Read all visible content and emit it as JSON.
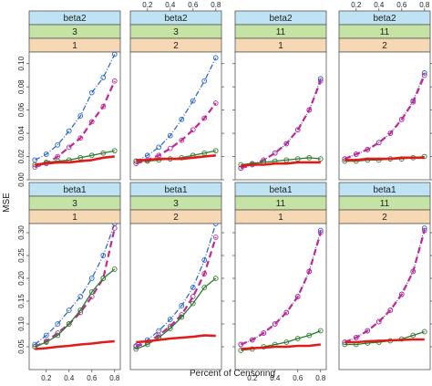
{
  "chart_data": {
    "type": "line",
    "xlabel": "Percent of Censoring",
    "ylabel": "MSE",
    "x": [
      0.1,
      0.2,
      0.3,
      0.4,
      0.5,
      0.6,
      0.7,
      0.8
    ],
    "x_ticks": [
      "0.2",
      "0.4",
      "0.6",
      "0.8"
    ],
    "x_tick_values": [
      0.2,
      0.4,
      0.6,
      0.8
    ],
    "xlim": [
      0.05,
      0.85
    ],
    "grid": false,
    "rows": [
      {
        "ylim": [
          0,
          0.11
        ],
        "y_ticks": [
          "0.00",
          "0.02",
          "0.04",
          "0.06",
          "0.08",
          "0.10"
        ],
        "y_tick_values": [
          0,
          0.02,
          0.04,
          0.06,
          0.08,
          0.1
        ]
      },
      {
        "ylim": [
          0,
          0.32
        ],
        "y_ticks": [
          "0.05",
          "0.10",
          "0.15",
          "0.20",
          "0.25",
          "0.30"
        ],
        "y_tick_values": [
          0.05,
          0.1,
          0.15,
          0.2,
          0.25,
          0.3
        ]
      }
    ],
    "colors": {
      "strip1": "#bfe3f2",
      "strip2": "#c6e3a6",
      "strip3": "#f7d8b4",
      "frame": "#555555"
    },
    "series_styles": [
      {
        "color": "#1f5fd1",
        "dash": "6,2,1,2",
        "width": 1.2,
        "marker": "circle-open"
      },
      {
        "color": "#c0289a",
        "dash": "7,4",
        "width": 2.2,
        "marker": "circle-open"
      },
      {
        "color": "#2b7a2b",
        "dash": "",
        "width": 1.3,
        "marker": "circle-open"
      },
      {
        "color": "#e11a1a",
        "dash": "",
        "width": 2.6,
        "marker": "none"
      }
    ],
    "panels": [
      {
        "strips": [
          "beta2",
          "3",
          "1"
        ],
        "row": 0,
        "col": 0,
        "series": [
          {
            "values": [
              0.017,
              0.022,
              0.03,
              0.042,
              0.055,
              0.075,
              0.088,
              0.108
            ]
          },
          {
            "values": [
              0.011,
              0.014,
              0.02,
              0.028,
              0.036,
              0.05,
              0.063,
              0.085
            ]
          },
          {
            "values": [
              0.013,
              0.015,
              0.016,
              0.017,
              0.019,
              0.021,
              0.023,
              0.025
            ]
          },
          {
            "values": [
              0.013,
              0.014,
              0.015,
              0.015,
              0.016,
              0.017,
              0.019,
              0.02
            ]
          }
        ]
      },
      {
        "strips": [
          "beta2",
          "3",
          "2"
        ],
        "row": 0,
        "col": 1,
        "series": [
          {
            "values": [
              0.016,
              0.021,
              0.028,
              0.038,
              0.052,
              0.068,
              0.085,
              0.105
            ]
          },
          {
            "values": [
              0.014,
              0.017,
              0.021,
              0.027,
              0.034,
              0.043,
              0.053,
              0.066
            ]
          },
          {
            "values": [
              0.016,
              0.016,
              0.017,
              0.018,
              0.019,
              0.021,
              0.023,
              0.025
            ]
          },
          {
            "values": [
              0.017,
              0.017,
              0.018,
              0.018,
              0.018,
              0.019,
              0.02,
              0.021
            ]
          }
        ]
      },
      {
        "strips": [
          "beta2",
          "11",
          "1"
        ],
        "row": 0,
        "col": 2,
        "series": [
          {
            "values": [
              0.01,
              0.013,
              0.017,
              0.023,
              0.031,
              0.043,
              0.06,
              0.087
            ]
          },
          {
            "values": [
              0.01,
              0.013,
              0.017,
              0.023,
              0.031,
              0.043,
              0.06,
              0.085
            ]
          },
          {
            "values": [
              0.013,
              0.014,
              0.015,
              0.016,
              0.017,
              0.018,
              0.019,
              0.018
            ]
          },
          {
            "values": [
              0.012,
              0.013,
              0.013,
              0.014,
              0.014,
              0.015,
              0.015,
              0.015
            ]
          }
        ]
      },
      {
        "strips": [
          "beta2",
          "11",
          "2"
        ],
        "row": 0,
        "col": 3,
        "series": [
          {
            "values": [
              0.018,
              0.022,
              0.026,
              0.032,
              0.04,
              0.052,
              0.068,
              0.092
            ]
          },
          {
            "values": [
              0.018,
              0.022,
              0.026,
              0.032,
              0.04,
              0.052,
              0.067,
              0.09
            ]
          },
          {
            "values": [
              0.016,
              0.016,
              0.017,
              0.017,
              0.018,
              0.018,
              0.019,
              0.02
            ]
          },
          {
            "values": [
              0.017,
              0.017,
              0.018,
              0.018,
              0.018,
              0.019,
              0.019,
              0.019
            ]
          }
        ]
      },
      {
        "strips": [
          "beta1",
          "3",
          "1"
        ],
        "row": 1,
        "col": 0,
        "series": [
          {
            "values": [
              0.055,
              0.075,
              0.1,
              0.13,
              0.16,
              0.2,
              0.25,
              0.32
            ]
          },
          {
            "values": [
              0.05,
              0.062,
              0.08,
              0.1,
              0.125,
              0.16,
              0.2,
              0.31
            ]
          },
          {
            "values": [
              0.05,
              0.06,
              0.075,
              0.1,
              0.13,
              0.17,
              0.2,
              0.22
            ]
          },
          {
            "values": [
              0.045,
              0.047,
              0.05,
              0.052,
              0.055,
              0.057,
              0.06,
              0.062
            ]
          }
        ]
      },
      {
        "strips": [
          "beta1",
          "3",
          "2"
        ],
        "row": 1,
        "col": 1,
        "series": [
          {
            "values": [
              0.052,
              0.065,
              0.085,
              0.11,
              0.14,
              0.18,
              0.24,
              0.32
            ]
          },
          {
            "values": [
              0.05,
              0.06,
              0.075,
              0.095,
              0.12,
              0.16,
              0.21,
              0.29
            ]
          },
          {
            "values": [
              0.045,
              0.055,
              0.07,
              0.09,
              0.115,
              0.145,
              0.18,
              0.2
            ]
          },
          {
            "values": [
              0.06,
              0.062,
              0.065,
              0.068,
              0.07,
              0.072,
              0.075,
              0.074
            ]
          }
        ]
      },
      {
        "strips": [
          "beta1",
          "11",
          "1"
        ],
        "row": 1,
        "col": 2,
        "series": [
          {
            "values": [
              0.055,
              0.065,
              0.08,
              0.1,
              0.125,
              0.16,
              0.215,
              0.305
            ]
          },
          {
            "values": [
              0.055,
              0.065,
              0.08,
              0.1,
              0.125,
              0.16,
              0.215,
              0.3
            ]
          },
          {
            "values": [
              0.042,
              0.045,
              0.05,
              0.055,
              0.06,
              0.068,
              0.075,
              0.085
            ]
          },
          {
            "values": [
              0.045,
              0.047,
              0.048,
              0.05,
              0.05,
              0.052,
              0.052,
              0.055
            ]
          }
        ]
      },
      {
        "strips": [
          "beta1",
          "11",
          "2"
        ],
        "row": 1,
        "col": 3,
        "series": [
          {
            "values": [
              0.06,
              0.07,
              0.085,
              0.105,
              0.13,
              0.165,
              0.215,
              0.31
            ]
          },
          {
            "values": [
              0.06,
              0.07,
              0.085,
              0.105,
              0.13,
              0.165,
              0.215,
              0.305
            ]
          },
          {
            "values": [
              0.055,
              0.055,
              0.058,
              0.06,
              0.063,
              0.067,
              0.075,
              0.083
            ]
          },
          {
            "values": [
              0.06,
              0.06,
              0.062,
              0.063,
              0.064,
              0.065,
              0.066,
              0.066
            ]
          }
        ]
      }
    ]
  }
}
